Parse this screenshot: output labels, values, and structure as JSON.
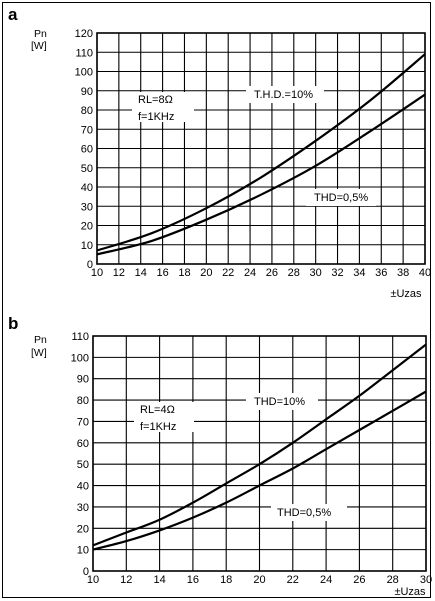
{
  "chart_data": [
    {
      "type": "line",
      "panel_label": "a",
      "ylabel_lines": [
        "Pn",
        "[W]"
      ],
      "xlabel": "±Uzas",
      "xlim": [
        10,
        40
      ],
      "ylim": [
        0,
        120
      ],
      "x_ticks": [
        10,
        12,
        14,
        16,
        18,
        20,
        22,
        24,
        26,
        28,
        30,
        32,
        34,
        36,
        38,
        40
      ],
      "y_ticks": [
        0,
        10,
        20,
        30,
        40,
        50,
        60,
        70,
        80,
        90,
        100,
        110,
        120
      ],
      "grid": true,
      "annotations": [
        {
          "id": "cond-load",
          "text": "RL=8Ω"
        },
        {
          "id": "cond-freq",
          "text": "f=1KHz"
        },
        {
          "id": "label-thd10",
          "text": "T.H.D.=10%"
        },
        {
          "id": "label-thd05",
          "text": "THD=0,5%"
        }
      ],
      "series": [
        {
          "name": "T.H.D.=10%",
          "x": [
            10,
            15,
            20,
            25,
            30,
            35,
            40
          ],
          "values": [
            7,
            16,
            29,
            45,
            64,
            85,
            109
          ]
        },
        {
          "name": "THD=0,5%",
          "x": [
            10,
            15,
            20,
            25,
            30,
            35,
            40
          ],
          "values": [
            5,
            12,
            23,
            36,
            51,
            69,
            88
          ]
        }
      ]
    },
    {
      "type": "line",
      "panel_label": "b",
      "ylabel_lines": [
        "Pn",
        "[W]"
      ],
      "xlabel": "±Uzas",
      "xlim": [
        10,
        30
      ],
      "ylim": [
        0,
        110
      ],
      "x_ticks": [
        10,
        12,
        14,
        16,
        18,
        20,
        22,
        24,
        26,
        28,
        30
      ],
      "y_ticks": [
        0,
        10,
        20,
        30,
        40,
        50,
        60,
        70,
        80,
        90,
        100,
        110
      ],
      "grid": true,
      "annotations": [
        {
          "id": "cond-load",
          "text": "RL=4Ω"
        },
        {
          "id": "cond-freq",
          "text": "f=1KHz"
        },
        {
          "id": "label-thd10",
          "text": "THD=10%"
        },
        {
          "id": "label-thd05",
          "text": "THD=0,5%"
        }
      ],
      "series": [
        {
          "name": "THD=10%",
          "x": [
            10,
            12,
            14,
            16,
            18,
            20,
            22,
            24,
            26,
            28,
            30
          ],
          "values": [
            12,
            18,
            24,
            32,
            41,
            50,
            60,
            71,
            82,
            94,
            106
          ]
        },
        {
          "name": "THD=0,5%",
          "x": [
            10,
            12,
            14,
            16,
            18,
            20,
            22,
            24,
            26,
            28,
            30
          ],
          "values": [
            10,
            14,
            19,
            25,
            32,
            40,
            48,
            57,
            66,
            75,
            84
          ]
        }
      ]
    }
  ]
}
